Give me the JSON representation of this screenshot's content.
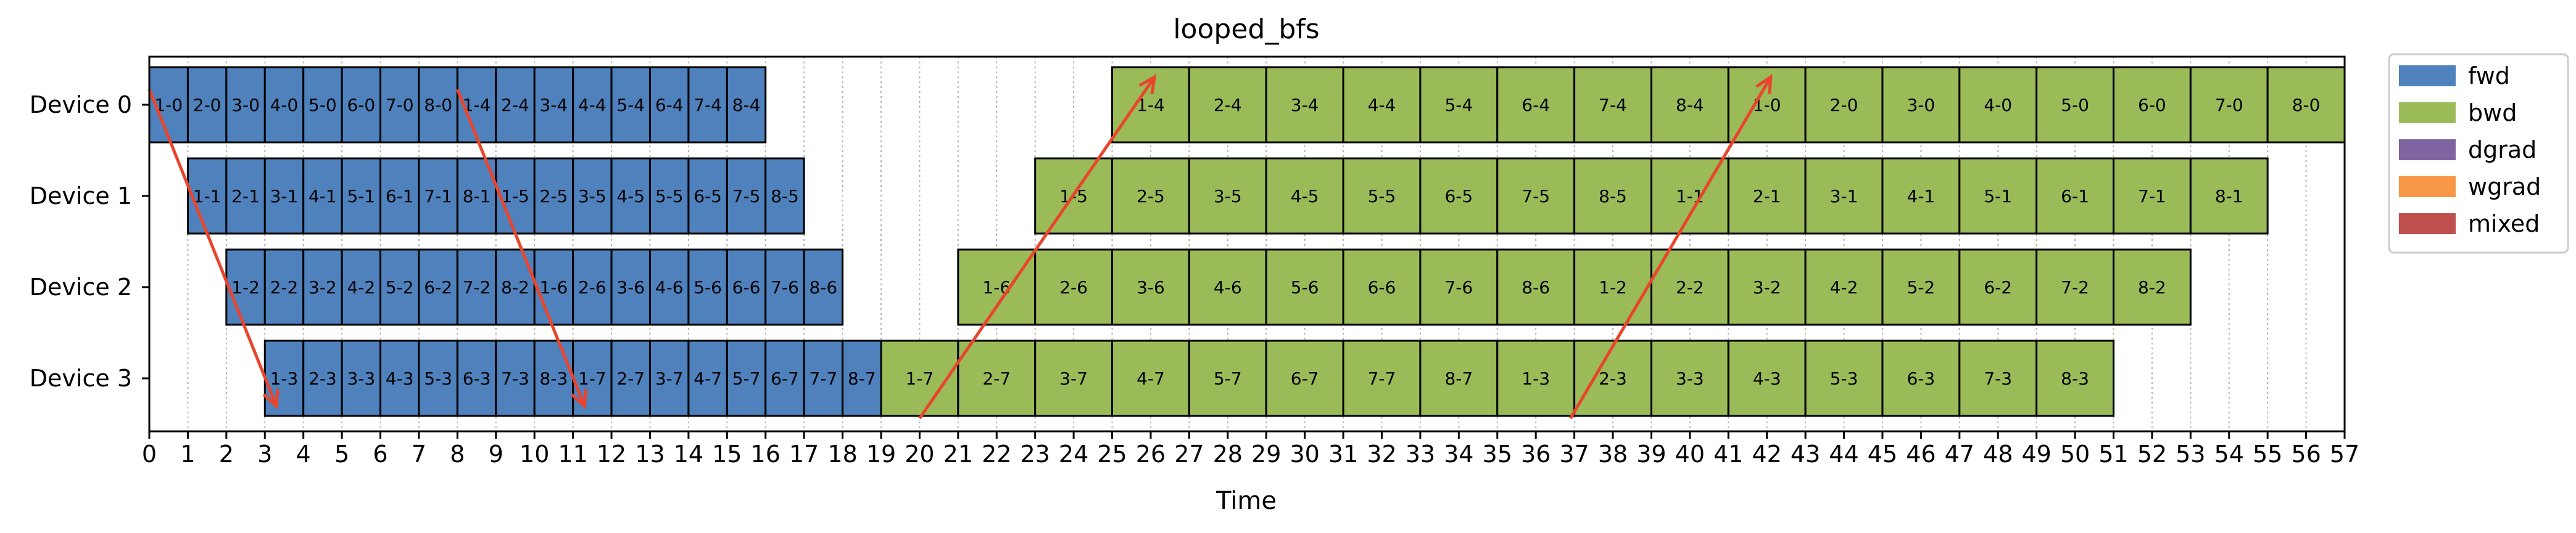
{
  "chart_data": {
    "type": "bar",
    "title": "looped_bfs",
    "xlabel": "Time",
    "ylabel": "",
    "xlim": [
      0,
      57
    ],
    "xticks": [
      0,
      1,
      2,
      3,
      4,
      5,
      6,
      7,
      8,
      9,
      10,
      11,
      12,
      13,
      14,
      15,
      16,
      17,
      18,
      19,
      20,
      21,
      22,
      23,
      24,
      25,
      26,
      27,
      28,
      29,
      30,
      31,
      32,
      33,
      34,
      35,
      36,
      37,
      38,
      39,
      40,
      41,
      42,
      43,
      44,
      45,
      46,
      47,
      48,
      49,
      50,
      51,
      52,
      53,
      54,
      55,
      56,
      57
    ],
    "grid": "vertical dotted",
    "legend_position": "outside right",
    "devices": [
      "Device 0",
      "Device 1",
      "Device 2",
      "Device 3"
    ],
    "legend": [
      {
        "name": "fwd",
        "color": "#4f81bd"
      },
      {
        "name": "bwd",
        "color": "#9bbb59"
      },
      {
        "name": "dgrad",
        "color": "#8064a2"
      },
      {
        "name": "wgrad",
        "color": "#f79646"
      },
      {
        "name": "mixed",
        "color": "#c0504d"
      }
    ],
    "tasks": [
      {
        "device": 0,
        "type": "fwd",
        "start": 0,
        "end": 1,
        "label": "1-0"
      },
      {
        "device": 0,
        "type": "fwd",
        "start": 1,
        "end": 2,
        "label": "2-0"
      },
      {
        "device": 0,
        "type": "fwd",
        "start": 2,
        "end": 3,
        "label": "3-0"
      },
      {
        "device": 0,
        "type": "fwd",
        "start": 3,
        "end": 4,
        "label": "4-0"
      },
      {
        "device": 0,
        "type": "fwd",
        "start": 4,
        "end": 5,
        "label": "5-0"
      },
      {
        "device": 0,
        "type": "fwd",
        "start": 5,
        "end": 6,
        "label": "6-0"
      },
      {
        "device": 0,
        "type": "fwd",
        "start": 6,
        "end": 7,
        "label": "7-0"
      },
      {
        "device": 0,
        "type": "fwd",
        "start": 7,
        "end": 8,
        "label": "8-0"
      },
      {
        "device": 0,
        "type": "fwd",
        "start": 8,
        "end": 9,
        "label": "1-4"
      },
      {
        "device": 0,
        "type": "fwd",
        "start": 9,
        "end": 10,
        "label": "2-4"
      },
      {
        "device": 0,
        "type": "fwd",
        "start": 10,
        "end": 11,
        "label": "3-4"
      },
      {
        "device": 0,
        "type": "fwd",
        "start": 11,
        "end": 12,
        "label": "4-4"
      },
      {
        "device": 0,
        "type": "fwd",
        "start": 12,
        "end": 13,
        "label": "5-4"
      },
      {
        "device": 0,
        "type": "fwd",
        "start": 13,
        "end": 14,
        "label": "6-4"
      },
      {
        "device": 0,
        "type": "fwd",
        "start": 14,
        "end": 15,
        "label": "7-4"
      },
      {
        "device": 0,
        "type": "fwd",
        "start": 15,
        "end": 16,
        "label": "8-4"
      },
      {
        "device": 0,
        "type": "bwd",
        "start": 25,
        "end": 27,
        "label": "1-4"
      },
      {
        "device": 0,
        "type": "bwd",
        "start": 27,
        "end": 29,
        "label": "2-4"
      },
      {
        "device": 0,
        "type": "bwd",
        "start": 29,
        "end": 31,
        "label": "3-4"
      },
      {
        "device": 0,
        "type": "bwd",
        "start": 31,
        "end": 33,
        "label": "4-4"
      },
      {
        "device": 0,
        "type": "bwd",
        "start": 33,
        "end": 35,
        "label": "5-4"
      },
      {
        "device": 0,
        "type": "bwd",
        "start": 35,
        "end": 37,
        "label": "6-4"
      },
      {
        "device": 0,
        "type": "bwd",
        "start": 37,
        "end": 39,
        "label": "7-4"
      },
      {
        "device": 0,
        "type": "bwd",
        "start": 39,
        "end": 41,
        "label": "8-4"
      },
      {
        "device": 0,
        "type": "bwd",
        "start": 41,
        "end": 43,
        "label": "1-0"
      },
      {
        "device": 0,
        "type": "bwd",
        "start": 43,
        "end": 45,
        "label": "2-0"
      },
      {
        "device": 0,
        "type": "bwd",
        "start": 45,
        "end": 47,
        "label": "3-0"
      },
      {
        "device": 0,
        "type": "bwd",
        "start": 47,
        "end": 49,
        "label": "4-0"
      },
      {
        "device": 0,
        "type": "bwd",
        "start": 49,
        "end": 51,
        "label": "5-0"
      },
      {
        "device": 0,
        "type": "bwd",
        "start": 51,
        "end": 53,
        "label": "6-0"
      },
      {
        "device": 0,
        "type": "bwd",
        "start": 53,
        "end": 55,
        "label": "7-0"
      },
      {
        "device": 0,
        "type": "bwd",
        "start": 55,
        "end": 57,
        "label": "8-0"
      },
      {
        "device": 1,
        "type": "fwd",
        "start": 1,
        "end": 2,
        "label": "1-1"
      },
      {
        "device": 1,
        "type": "fwd",
        "start": 2,
        "end": 3,
        "label": "2-1"
      },
      {
        "device": 1,
        "type": "fwd",
        "start": 3,
        "end": 4,
        "label": "3-1"
      },
      {
        "device": 1,
        "type": "fwd",
        "start": 4,
        "end": 5,
        "label": "4-1"
      },
      {
        "device": 1,
        "type": "fwd",
        "start": 5,
        "end": 6,
        "label": "5-1"
      },
      {
        "device": 1,
        "type": "fwd",
        "start": 6,
        "end": 7,
        "label": "6-1"
      },
      {
        "device": 1,
        "type": "fwd",
        "start": 7,
        "end": 8,
        "label": "7-1"
      },
      {
        "device": 1,
        "type": "fwd",
        "start": 8,
        "end": 9,
        "label": "8-1"
      },
      {
        "device": 1,
        "type": "fwd",
        "start": 9,
        "end": 10,
        "label": "1-5"
      },
      {
        "device": 1,
        "type": "fwd",
        "start": 10,
        "end": 11,
        "label": "2-5"
      },
      {
        "device": 1,
        "type": "fwd",
        "start": 11,
        "end": 12,
        "label": "3-5"
      },
      {
        "device": 1,
        "type": "fwd",
        "start": 12,
        "end": 13,
        "label": "4-5"
      },
      {
        "device": 1,
        "type": "fwd",
        "start": 13,
        "end": 14,
        "label": "5-5"
      },
      {
        "device": 1,
        "type": "fwd",
        "start": 14,
        "end": 15,
        "label": "6-5"
      },
      {
        "device": 1,
        "type": "fwd",
        "start": 15,
        "end": 16,
        "label": "7-5"
      },
      {
        "device": 1,
        "type": "fwd",
        "start": 16,
        "end": 17,
        "label": "8-5"
      },
      {
        "device": 1,
        "type": "bwd",
        "start": 23,
        "end": 25,
        "label": "1-5"
      },
      {
        "device": 1,
        "type": "bwd",
        "start": 25,
        "end": 27,
        "label": "2-5"
      },
      {
        "device": 1,
        "type": "bwd",
        "start": 27,
        "end": 29,
        "label": "3-5"
      },
      {
        "device": 1,
        "type": "bwd",
        "start": 29,
        "end": 31,
        "label": "4-5"
      },
      {
        "device": 1,
        "type": "bwd",
        "start": 31,
        "end": 33,
        "label": "5-5"
      },
      {
        "device": 1,
        "type": "bwd",
        "start": 33,
        "end": 35,
        "label": "6-5"
      },
      {
        "device": 1,
        "type": "bwd",
        "start": 35,
        "end": 37,
        "label": "7-5"
      },
      {
        "device": 1,
        "type": "bwd",
        "start": 37,
        "end": 39,
        "label": "8-5"
      },
      {
        "device": 1,
        "type": "bwd",
        "start": 39,
        "end": 41,
        "label": "1-1"
      },
      {
        "device": 1,
        "type": "bwd",
        "start": 41,
        "end": 43,
        "label": "2-1"
      },
      {
        "device": 1,
        "type": "bwd",
        "start": 43,
        "end": 45,
        "label": "3-1"
      },
      {
        "device": 1,
        "type": "bwd",
        "start": 45,
        "end": 47,
        "label": "4-1"
      },
      {
        "device": 1,
        "type": "bwd",
        "start": 47,
        "end": 49,
        "label": "5-1"
      },
      {
        "device": 1,
        "type": "bwd",
        "start": 49,
        "end": 51,
        "label": "6-1"
      },
      {
        "device": 1,
        "type": "bwd",
        "start": 51,
        "end": 53,
        "label": "7-1"
      },
      {
        "device": 1,
        "type": "bwd",
        "start": 53,
        "end": 55,
        "label": "8-1"
      },
      {
        "device": 2,
        "type": "fwd",
        "start": 2,
        "end": 3,
        "label": "1-2"
      },
      {
        "device": 2,
        "type": "fwd",
        "start": 3,
        "end": 4,
        "label": "2-2"
      },
      {
        "device": 2,
        "type": "fwd",
        "start": 4,
        "end": 5,
        "label": "3-2"
      },
      {
        "device": 2,
        "type": "fwd",
        "start": 5,
        "end": 6,
        "label": "4-2"
      },
      {
        "device": 2,
        "type": "fwd",
        "start": 6,
        "end": 7,
        "label": "5-2"
      },
      {
        "device": 2,
        "type": "fwd",
        "start": 7,
        "end": 8,
        "label": "6-2"
      },
      {
        "device": 2,
        "type": "fwd",
        "start": 8,
        "end": 9,
        "label": "7-2"
      },
      {
        "device": 2,
        "type": "fwd",
        "start": 9,
        "end": 10,
        "label": "8-2"
      },
      {
        "device": 2,
        "type": "fwd",
        "start": 10,
        "end": 11,
        "label": "1-6"
      },
      {
        "device": 2,
        "type": "fwd",
        "start": 11,
        "end": 12,
        "label": "2-6"
      },
      {
        "device": 2,
        "type": "fwd",
        "start": 12,
        "end": 13,
        "label": "3-6"
      },
      {
        "device": 2,
        "type": "fwd",
        "start": 13,
        "end": 14,
        "label": "4-6"
      },
      {
        "device": 2,
        "type": "fwd",
        "start": 14,
        "end": 15,
        "label": "5-6"
      },
      {
        "device": 2,
        "type": "fwd",
        "start": 15,
        "end": 16,
        "label": "6-6"
      },
      {
        "device": 2,
        "type": "fwd",
        "start": 16,
        "end": 17,
        "label": "7-6"
      },
      {
        "device": 2,
        "type": "fwd",
        "start": 17,
        "end": 18,
        "label": "8-6"
      },
      {
        "device": 2,
        "type": "bwd",
        "start": 21,
        "end": 23,
        "label": "1-6"
      },
      {
        "device": 2,
        "type": "bwd",
        "start": 23,
        "end": 25,
        "label": "2-6"
      },
      {
        "device": 2,
        "type": "bwd",
        "start": 25,
        "end": 27,
        "label": "3-6"
      },
      {
        "device": 2,
        "type": "bwd",
        "start": 27,
        "end": 29,
        "label": "4-6"
      },
      {
        "device": 2,
        "type": "bwd",
        "start": 29,
        "end": 31,
        "label": "5-6"
      },
      {
        "device": 2,
        "type": "bwd",
        "start": 31,
        "end": 33,
        "label": "6-6"
      },
      {
        "device": 2,
        "type": "bwd",
        "start": 33,
        "end": 35,
        "label": "7-6"
      },
      {
        "device": 2,
        "type": "bwd",
        "start": 35,
        "end": 37,
        "label": "8-6"
      },
      {
        "device": 2,
        "type": "bwd",
        "start": 37,
        "end": 39,
        "label": "1-2"
      },
      {
        "device": 2,
        "type": "bwd",
        "start": 39,
        "end": 41,
        "label": "2-2"
      },
      {
        "device": 2,
        "type": "bwd",
        "start": 41,
        "end": 43,
        "label": "3-2"
      },
      {
        "device": 2,
        "type": "bwd",
        "start": 43,
        "end": 45,
        "label": "4-2"
      },
      {
        "device": 2,
        "type": "bwd",
        "start": 45,
        "end": 47,
        "label": "5-2"
      },
      {
        "device": 2,
        "type": "bwd",
        "start": 47,
        "end": 49,
        "label": "6-2"
      },
      {
        "device": 2,
        "type": "bwd",
        "start": 49,
        "end": 51,
        "label": "7-2"
      },
      {
        "device": 2,
        "type": "bwd",
        "start": 51,
        "end": 53,
        "label": "8-2"
      },
      {
        "device": 3,
        "type": "fwd",
        "start": 3,
        "end": 4,
        "label": "1-3"
      },
      {
        "device": 3,
        "type": "fwd",
        "start": 4,
        "end": 5,
        "label": "2-3"
      },
      {
        "device": 3,
        "type": "fwd",
        "start": 5,
        "end": 6,
        "label": "3-3"
      },
      {
        "device": 3,
        "type": "fwd",
        "start": 6,
        "end": 7,
        "label": "4-3"
      },
      {
        "device": 3,
        "type": "fwd",
        "start": 7,
        "end": 8,
        "label": "5-3"
      },
      {
        "device": 3,
        "type": "fwd",
        "start": 8,
        "end": 9,
        "label": "6-3"
      },
      {
        "device": 3,
        "type": "fwd",
        "start": 9,
        "end": 10,
        "label": "7-3"
      },
      {
        "device": 3,
        "type": "fwd",
        "start": 10,
        "end": 11,
        "label": "8-3"
      },
      {
        "device": 3,
        "type": "fwd",
        "start": 11,
        "end": 12,
        "label": "1-7"
      },
      {
        "device": 3,
        "type": "fwd",
        "start": 12,
        "end": 13,
        "label": "2-7"
      },
      {
        "device": 3,
        "type": "fwd",
        "start": 13,
        "end": 14,
        "label": "3-7"
      },
      {
        "device": 3,
        "type": "fwd",
        "start": 14,
        "end": 15,
        "label": "4-7"
      },
      {
        "device": 3,
        "type": "fwd",
        "start": 15,
        "end": 16,
        "label": "5-7"
      },
      {
        "device": 3,
        "type": "fwd",
        "start": 16,
        "end": 17,
        "label": "6-7"
      },
      {
        "device": 3,
        "type": "fwd",
        "start": 17,
        "end": 18,
        "label": "7-7"
      },
      {
        "device": 3,
        "type": "fwd",
        "start": 18,
        "end": 19,
        "label": "8-7"
      },
      {
        "device": 3,
        "type": "bwd",
        "start": 19,
        "end": 21,
        "label": "1-7"
      },
      {
        "device": 3,
        "type": "bwd",
        "start": 21,
        "end": 23,
        "label": "2-7"
      },
      {
        "device": 3,
        "type": "bwd",
        "start": 23,
        "end": 25,
        "label": "3-7"
      },
      {
        "device": 3,
        "type": "bwd",
        "start": 25,
        "end": 27,
        "label": "4-7"
      },
      {
        "device": 3,
        "type": "bwd",
        "start": 27,
        "end": 29,
        "label": "5-7"
      },
      {
        "device": 3,
        "type": "bwd",
        "start": 29,
        "end": 31,
        "label": "6-7"
      },
      {
        "device": 3,
        "type": "bwd",
        "start": 31,
        "end": 33,
        "label": "7-7"
      },
      {
        "device": 3,
        "type": "bwd",
        "start": 33,
        "end": 35,
        "label": "8-7"
      },
      {
        "device": 3,
        "type": "bwd",
        "start": 35,
        "end": 37,
        "label": "1-3"
      },
      {
        "device": 3,
        "type": "bwd",
        "start": 37,
        "end": 39,
        "label": "2-3"
      },
      {
        "device": 3,
        "type": "bwd",
        "start": 39,
        "end": 41,
        "label": "3-3"
      },
      {
        "device": 3,
        "type": "bwd",
        "start": 41,
        "end": 43,
        "label": "4-3"
      },
      {
        "device": 3,
        "type": "bwd",
        "start": 43,
        "end": 45,
        "label": "5-3"
      },
      {
        "device": 3,
        "type": "bwd",
        "start": 45,
        "end": 47,
        "label": "6-3"
      },
      {
        "device": 3,
        "type": "bwd",
        "start": 47,
        "end": 49,
        "label": "7-3"
      },
      {
        "device": 3,
        "type": "bwd",
        "start": 49,
        "end": 51,
        "label": "8-3"
      }
    ],
    "arrows": [
      {
        "from": {
          "time": 0,
          "device": 0
        },
        "to": {
          "time": 3.3,
          "device": 3
        }
      },
      {
        "from": {
          "time": 8,
          "device": 0
        },
        "to": {
          "time": 11.3,
          "device": 3
        }
      },
      {
        "from": {
          "time": 20,
          "device": 3
        },
        "to": {
          "time": 26.1,
          "device": 0
        }
      },
      {
        "from": {
          "time": 36.9,
          "device": 3
        },
        "to": {
          "time": 42.1,
          "device": 0
        }
      }
    ],
    "arrow_color": "#e8452c"
  }
}
